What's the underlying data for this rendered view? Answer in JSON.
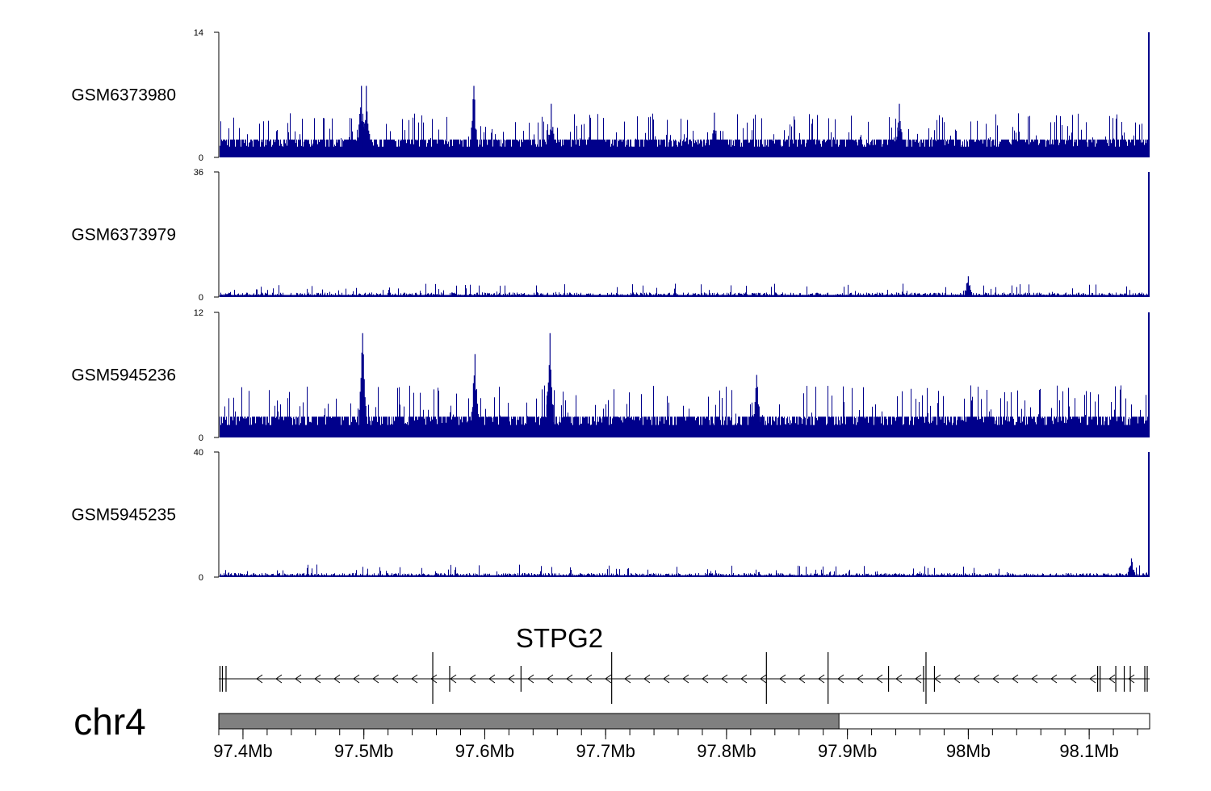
{
  "chart_data": {
    "type": "genome-browser",
    "chromosome": "chr4",
    "x_range_mb": [
      97.38,
      98.15
    ],
    "track_color": "#00008B",
    "tracks": [
      {
        "name": "GSM6373980",
        "ylim": [
          0,
          14
        ],
        "baseline": 2,
        "noise_max": 5,
        "end_peak": 14,
        "peaks": [
          {
            "pos": 97.498,
            "height": 8
          },
          {
            "pos": 97.502,
            "height": 8
          },
          {
            "pos": 97.591,
            "height": 8
          },
          {
            "pos": 97.655,
            "height": 6
          },
          {
            "pos": 97.79,
            "height": 5
          },
          {
            "pos": 97.943,
            "height": 6
          }
        ]
      },
      {
        "name": "GSM6373979",
        "ylim": [
          0,
          36
        ],
        "baseline": 1,
        "noise_max": 4,
        "end_peak": 36,
        "peaks": [
          {
            "pos": 98.0,
            "height": 6
          }
        ]
      },
      {
        "name": "GSM5945236",
        "ylim": [
          0,
          12
        ],
        "baseline": 2,
        "noise_max": 5,
        "end_peak": 12,
        "peaks": [
          {
            "pos": 97.499,
            "height": 10
          },
          {
            "pos": 97.592,
            "height": 8
          },
          {
            "pos": 97.654,
            "height": 10
          },
          {
            "pos": 97.825,
            "height": 6
          }
        ]
      },
      {
        "name": "GSM5945235",
        "ylim": [
          0,
          40
        ],
        "baseline": 1,
        "noise_max": 4,
        "end_peak": 40,
        "peaks": [
          {
            "pos": 98.135,
            "height": 6
          }
        ]
      }
    ],
    "gene": {
      "name": "STPG2",
      "strand": "-",
      "exons_mb": [
        97.381,
        97.383,
        97.386,
        97.557,
        97.571,
        97.63,
        97.705,
        97.833,
        97.884,
        97.934,
        97.963,
        97.965,
        97.972,
        98.107,
        98.109,
        98.122,
        98.129,
        98.134,
        98.146,
        98.148
      ]
    },
    "ideogram_band": {
      "start_mb": 97.38,
      "end_mb": 97.893,
      "color": "#808080"
    },
    "x_ticks": [
      97.4,
      97.5,
      97.6,
      97.7,
      97.8,
      97.9,
      98.0,
      98.1
    ],
    "x_tick_labels": [
      "97.4Mb",
      "97.5Mb",
      "97.6Mb",
      "97.7Mb",
      "97.8Mb",
      "97.9Mb",
      "98Mb",
      "98.1Mb"
    ]
  }
}
